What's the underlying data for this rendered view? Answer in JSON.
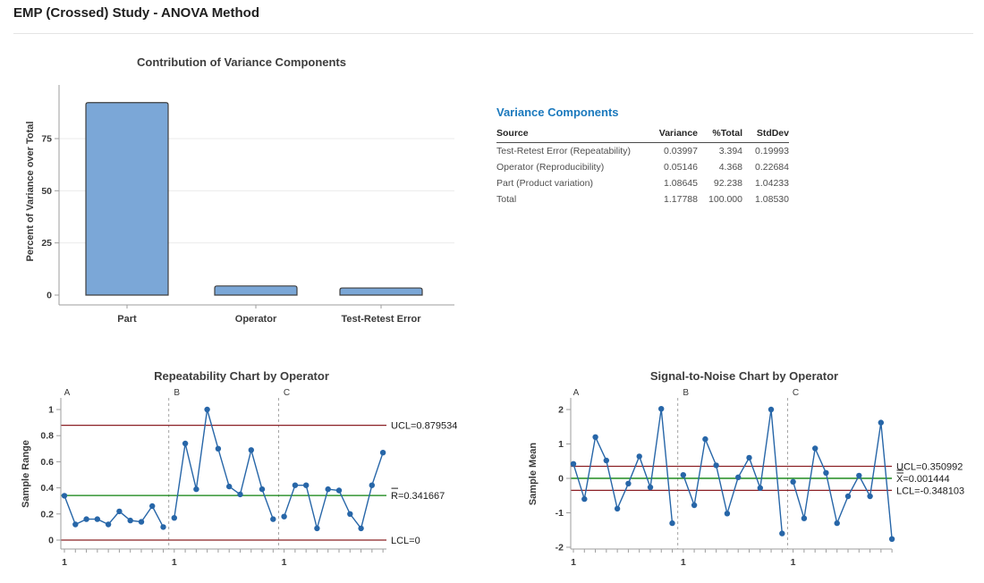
{
  "page": {
    "title": "EMP (Crossed) Study - ANOVA Method"
  },
  "colors": {
    "accent_blue": "#1b79bd",
    "series_blue": "#2766a8",
    "bar_fill": "#7ba7d7",
    "bar_border": "#3f3f3f",
    "limit_red": "#8b2025",
    "center_green": "#0b800b",
    "axis_gray": "#9e9e9e",
    "grid_gray": "#ebebeb",
    "separator_gray": "#a3a3a3",
    "text_dark": "#3a3a3a"
  },
  "variance_table": {
    "title": "Variance Components",
    "headers": [
      "Source",
      "Variance",
      "%Total",
      "StdDev"
    ],
    "rows": [
      [
        "Test-Retest Error (Repeatability)",
        "0.03997",
        "3.394",
        "0.19993"
      ],
      [
        "Operator (Reproducibility)",
        "0.05146",
        "4.368",
        "0.22684"
      ],
      [
        "Part (Product variation)",
        "1.08645",
        "92.238",
        "1.04233"
      ],
      [
        "Total",
        "1.17788",
        "100.000",
        "1.08530"
      ]
    ]
  },
  "chart_data": [
    {
      "id": "contribution",
      "type": "bar",
      "title": "Contribution of Variance Components",
      "ylabel": "Percent of Variance over Total",
      "categories": [
        "Part",
        "Operator",
        "Test-Retest Error"
      ],
      "values": [
        92.238,
        4.368,
        3.394
      ],
      "yticks": [
        {
          "v": 0,
          "t": "0"
        },
        {
          "v": 25,
          "t": "25"
        },
        {
          "v": 50,
          "t": "50"
        },
        {
          "v": 75,
          "t": "75"
        }
      ],
      "ylim": [
        0,
        105
      ],
      "grid": true,
      "legend": "none"
    },
    {
      "id": "repeatability",
      "type": "line",
      "title": "Repeatability Chart by Operator",
      "ylabel": "Sample Range",
      "group_labels": [
        "A",
        "B",
        "C"
      ],
      "group_start_label": "1",
      "series": [
        {
          "name": "A",
          "values": [
            0.34,
            0.12,
            0.16,
            0.16,
            0.12,
            0.22,
            0.15,
            0.14,
            0.26,
            0.1
          ]
        },
        {
          "name": "B",
          "values": [
            0.17,
            0.74,
            0.39,
            1.0,
            0.7,
            0.41,
            0.35,
            0.69,
            0.39,
            0.16
          ]
        },
        {
          "name": "C",
          "values": [
            0.18,
            0.42,
            0.42,
            0.09,
            0.39,
            0.38,
            0.2,
            0.09,
            0.42,
            0.67
          ]
        }
      ],
      "yticks": [
        {
          "v": 0,
          "t": "0"
        },
        {
          "v": 0.2,
          "t": "0.2"
        },
        {
          "v": 0.4,
          "t": "0.4"
        },
        {
          "v": 0.6,
          "t": "0.6"
        },
        {
          "v": 0.8,
          "t": "0.8"
        },
        {
          "v": 1,
          "t": "1"
        }
      ],
      "ylim": [
        -0.07,
        1.09
      ],
      "ref_lines": [
        {
          "label": "UCL=0.879534",
          "value": 0.879534,
          "color": "#8b2025"
        },
        {
          "label": "R̄=0.341667",
          "value": 0.341667,
          "color": "#0b800b"
        },
        {
          "label": "LCL=0",
          "value": 0,
          "color": "#8b2025"
        }
      ]
    },
    {
      "id": "signal_to_noise",
      "type": "line",
      "title": "Signal-to-Noise Chart by Operator",
      "ylabel": "Sample Mean",
      "group_labels": [
        "A",
        "B",
        "C"
      ],
      "group_start_label": "1",
      "series": [
        {
          "name": "A",
          "values": [
            0.42,
            -0.6,
            1.2,
            0.52,
            -0.88,
            -0.15,
            0.64,
            -0.26,
            2.02,
            -1.3
          ]
        },
        {
          "name": "B",
          "values": [
            0.1,
            -0.78,
            1.14,
            0.38,
            -1.02,
            0.03,
            0.6,
            -0.28,
            2.0,
            -1.6
          ]
        },
        {
          "name": "C",
          "values": [
            -0.1,
            -1.16,
            0.87,
            0.16,
            -1.3,
            -0.52,
            0.08,
            -0.52,
            1.62,
            -1.76
          ]
        }
      ],
      "yticks": [
        {
          "v": 2,
          "t": "2"
        },
        {
          "v": 1,
          "t": "1"
        },
        {
          "v": 0,
          "t": "0"
        },
        {
          "v": -1,
          "t": "-1"
        },
        {
          "v": -2,
          "t": "-2"
        }
      ],
      "ylim": [
        -2.35,
        2.35
      ],
      "ref_lines": [
        {
          "label": "UCL=0.350992",
          "value": 0.350992,
          "color": "#8b2025"
        },
        {
          "label": "X̿=0.001444",
          "value": 0.001444,
          "color": "#0b800b"
        },
        {
          "label": "LCL=-0.348103",
          "value": -0.348103,
          "color": "#8b2025"
        }
      ]
    }
  ]
}
